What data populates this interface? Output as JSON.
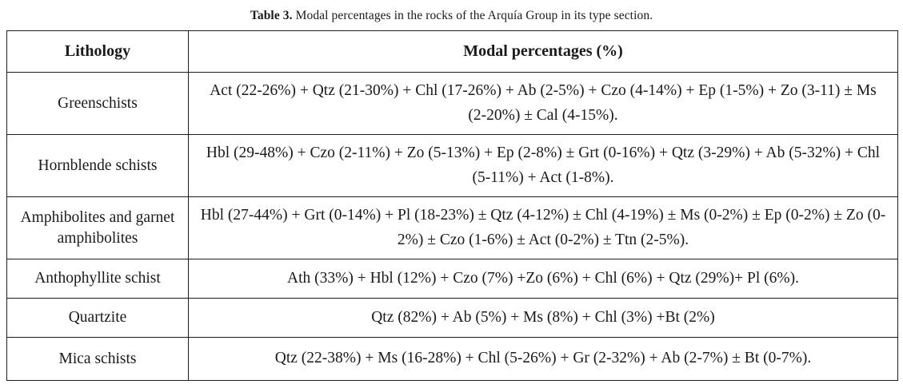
{
  "caption": {
    "label": "Table 3.",
    "text": " Modal percentages in the rocks of the Arquía Group in its type section."
  },
  "table": {
    "headers": {
      "lithology": "Lithology",
      "modal": "Modal percentages (%)"
    },
    "rows": [
      {
        "lithology": "Greenschists",
        "modal": "Act (22-26%) + Qtz (21-30%) + Chl (17-26%) + Ab (2-5%) + Czo (4-14%) + Ep (1-5%) + Zo (3-11) ± Ms (2-20%) ± Cal (4-15%)."
      },
      {
        "lithology": "Hornblende schists",
        "modal": "Hbl (29-48%) + Czo (2-11%) + Zo (5-13%) + Ep (2-8%) ± Grt (0-16%) + Qtz (3-29%) + Ab (5-32%) + Chl (5-11%) + Act (1-8%)."
      },
      {
        "lithology": "Amphibolites and garnet amphibolites",
        "modal": "Hbl (27-44%) + Grt (0-14%) + Pl (18-23%) ± Qtz (4-12%) ± Chl (4-19%) ± Ms (0-2%) ± Ep (0-2%) ± Zo (0-2%) ± Czo (1-6%) ± Act (0-2%) ± Ttn (2-5%)."
      },
      {
        "lithology": "Anthophyllite schist",
        "modal": "Ath (33%) + Hbl (12%) + Czo (7%) +Zo (6%) + Chl (6%) + Qtz (29%)+ Pl (6%)."
      },
      {
        "lithology": "Quartzite",
        "modal": "Qtz (82%) + Ab (5%) + Ms (8%) + Chl (3%) +Bt (2%)"
      },
      {
        "lithology": "Mica schists",
        "modal": "Qtz (22-38%) + Ms (16-28%) + Chl (5-26%) + Gr (2-32%) + Ab (2-7%) ± Bt (0-7%)."
      }
    ]
  }
}
